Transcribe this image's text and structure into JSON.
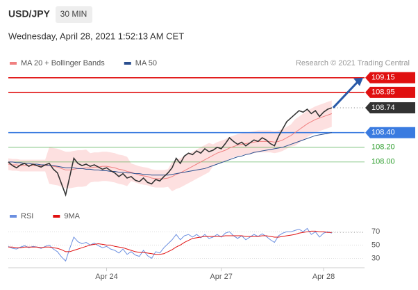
{
  "header": {
    "symbol": "USD/JPY",
    "interval": "30 MIN",
    "datetime": "Wednesday, April 28, 2021 1:52:13 AM CET"
  },
  "chart_data": [
    {
      "type": "candlestick-overlay",
      "legend": [
        {
          "name": "MA 20 + Bollinger Bands",
          "color": "#f08080"
        },
        {
          "name": "MA 50",
          "color": "#2a4f8f"
        }
      ],
      "credit": "Research © 2021 Trading Central",
      "xlim": [
        0,
        87
      ],
      "xticks": [
        {
          "value": 24,
          "label": "Apr 24"
        },
        {
          "value": 52,
          "label": "Apr 27"
        },
        {
          "value": 77,
          "label": "Apr 28"
        }
      ],
      "ylim": [
        107.4,
        109.3
      ],
      "levels": [
        {
          "value": 109.15,
          "color": "#e01010",
          "kind": "box"
        },
        {
          "value": 108.95,
          "color": "#e01010",
          "kind": "box"
        },
        {
          "value": 108.74,
          "color": "#333333",
          "kind": "dotted"
        },
        {
          "value": 108.4,
          "label": "108.40",
          "color": "#3a7be0",
          "kind": "box"
        },
        {
          "value": 108.2,
          "label": "108.20",
          "color": "#2e9e2e",
          "kind": "text"
        },
        {
          "value": 108,
          "label": "108.00",
          "color": "#2e9e2e",
          "kind": "text"
        }
      ],
      "target": 109.15,
      "series": [
        {
          "name": "Price",
          "color": "#333333",
          "values": [
            108.0,
            107.95,
            107.92,
            107.96,
            107.98,
            107.94,
            107.97,
            107.95,
            107.93,
            107.96,
            107.98,
            107.9,
            107.85,
            107.7,
            107.55,
            107.8,
            108.05,
            107.98,
            107.95,
            107.97,
            107.94,
            107.96,
            107.93,
            107.9,
            107.92,
            107.88,
            107.85,
            107.8,
            107.84,
            107.78,
            107.8,
            107.75,
            107.73,
            107.78,
            107.72,
            107.7,
            107.76,
            107.74,
            107.8,
            107.85,
            107.92,
            108.05,
            107.98,
            108.08,
            108.12,
            108.1,
            108.15,
            108.12,
            108.18,
            108.14,
            108.16,
            108.2,
            108.18,
            108.25,
            108.33,
            108.28,
            108.24,
            108.27,
            108.22,
            108.26,
            108.3,
            108.28,
            108.33,
            108.3,
            108.25,
            108.22,
            108.35,
            108.45,
            108.55,
            108.6,
            108.65,
            108.7,
            108.68,
            108.72,
            108.66,
            108.7,
            108.62,
            108.68,
            108.72,
            108.74
          ]
        },
        {
          "name": "MA 20",
          "color": "#f08080",
          "values": [
            107.97,
            107.96,
            107.96,
            107.95,
            107.95,
            107.95,
            107.95,
            107.95,
            107.95,
            107.95,
            107.95,
            107.94,
            107.93,
            107.91,
            107.89,
            107.89,
            107.9,
            107.91,
            107.91,
            107.92,
            107.92,
            107.93,
            107.93,
            107.94,
            107.94,
            107.93,
            107.92,
            107.9,
            107.89,
            107.87,
            107.86,
            107.84,
            107.82,
            107.81,
            107.8,
            107.78,
            107.77,
            107.77,
            107.77,
            107.78,
            107.8,
            107.83,
            107.85,
            107.88,
            107.91,
            107.94,
            107.97,
            108.0,
            108.03,
            108.06,
            108.09,
            108.12,
            108.14,
            108.16,
            108.19,
            108.21,
            108.23,
            108.24,
            108.25,
            108.26,
            108.27,
            108.28,
            108.28,
            108.28,
            108.28,
            108.27,
            108.28,
            108.3,
            108.33,
            108.36,
            108.4,
            108.44,
            108.48,
            108.52,
            108.55,
            108.58,
            108.6,
            108.62,
            108.64,
            108.66
          ]
        },
        {
          "name": "Upper band",
          "color": "#f8c8c8",
          "values": [
            108.05,
            108.04,
            108.04,
            108.03,
            108.03,
            108.03,
            108.03,
            108.03,
            108.03,
            108.03,
            108.2,
            108.19,
            108.18,
            108.16,
            108.14,
            108.14,
            108.15,
            108.16,
            108.16,
            108.17,
            108.12,
            108.13,
            108.13,
            108.14,
            108.14,
            108.13,
            108.12,
            108.1,
            108.09,
            108.07,
            107.98,
            107.96,
            107.94,
            107.93,
            107.92,
            107.9,
            107.89,
            107.89,
            107.89,
            107.9,
            108.0,
            108.03,
            108.05,
            108.08,
            108.11,
            108.14,
            108.17,
            108.2,
            108.23,
            108.26,
            108.24,
            108.27,
            108.29,
            108.31,
            108.34,
            108.36,
            108.38,
            108.39,
            108.4,
            108.41,
            108.42,
            108.43,
            108.43,
            108.43,
            108.43,
            108.42,
            108.43,
            108.45,
            108.48,
            108.51,
            108.58,
            108.62,
            108.66,
            108.7,
            108.73,
            108.76,
            108.78,
            108.8,
            108.82,
            108.84
          ]
        },
        {
          "name": "Lower band",
          "color": "#f8c8c8",
          "values": [
            107.89,
            107.88,
            107.88,
            107.87,
            107.87,
            107.87,
            107.87,
            107.87,
            107.87,
            107.87,
            107.7,
            107.69,
            107.68,
            107.66,
            107.64,
            107.64,
            107.65,
            107.66,
            107.66,
            107.67,
            107.72,
            107.73,
            107.73,
            107.74,
            107.74,
            107.73,
            107.72,
            107.7,
            107.69,
            107.67,
            107.74,
            107.72,
            107.7,
            107.69,
            107.68,
            107.66,
            107.65,
            107.65,
            107.65,
            107.66,
            107.6,
            107.63,
            107.65,
            107.68,
            107.71,
            107.74,
            107.77,
            107.8,
            107.83,
            107.86,
            107.94,
            107.97,
            107.99,
            108.01,
            108.04,
            108.06,
            108.08,
            108.09,
            108.1,
            108.11,
            108.12,
            108.13,
            108.13,
            108.13,
            108.13,
            108.12,
            108.13,
            108.15,
            108.18,
            108.21,
            108.22,
            108.26,
            108.3,
            108.34,
            108.37,
            108.4,
            108.42,
            108.44,
            108.46,
            108.48
          ]
        },
        {
          "name": "MA 50",
          "color": "#2a4f8f",
          "values": [
            108.0,
            108.0,
            107.99,
            107.99,
            107.98,
            107.98,
            107.97,
            107.97,
            107.96,
            107.96,
            107.95,
            107.95,
            107.94,
            107.93,
            107.92,
            107.92,
            107.92,
            107.91,
            107.91,
            107.9,
            107.9,
            107.89,
            107.89,
            107.88,
            107.88,
            107.87,
            107.87,
            107.86,
            107.86,
            107.85,
            107.85,
            107.84,
            107.84,
            107.83,
            107.83,
            107.82,
            107.82,
            107.82,
            107.82,
            107.82,
            107.83,
            107.84,
            107.85,
            107.86,
            107.87,
            107.88,
            107.89,
            107.9,
            107.91,
            107.93,
            107.95,
            107.97,
            107.99,
            108.01,
            108.03,
            108.05,
            108.07,
            108.08,
            108.1,
            108.11,
            108.13,
            108.14,
            108.15,
            108.16,
            108.17,
            108.18,
            108.19,
            108.2,
            108.22,
            108.24,
            108.26,
            108.28,
            108.3,
            108.32,
            108.34,
            108.36,
            108.37,
            108.38,
            108.39,
            108.4
          ]
        }
      ]
    },
    {
      "type": "oscillator",
      "legend": [
        {
          "name": "RSI",
          "color": "#6b8fe0"
        },
        {
          "name": "9MA",
          "color": "#e01010"
        }
      ],
      "ylim": [
        20,
        85
      ],
      "yticks": [
        30,
        50,
        70
      ],
      "series": [
        {
          "name": "RSI",
          "color": "#6b8fe0",
          "values": [
            48,
            45,
            44,
            47,
            49,
            46,
            48,
            47,
            45,
            48,
            50,
            44,
            40,
            32,
            26,
            45,
            62,
            55,
            52,
            54,
            50,
            53,
            49,
            46,
            48,
            44,
            42,
            38,
            44,
            36,
            40,
            35,
            33,
            42,
            34,
            30,
            40,
            38,
            46,
            52,
            58,
            66,
            58,
            64,
            66,
            62,
            66,
            61,
            66,
            60,
            62,
            66,
            62,
            68,
            70,
            64,
            60,
            64,
            58,
            62,
            66,
            63,
            67,
            63,
            58,
            54,
            64,
            68,
            70,
            70,
            72,
            74,
            70,
            75,
            66,
            70,
            62,
            68,
            70,
            68
          ]
        },
        {
          "name": "9MA",
          "color": "#e01010",
          "values": [
            47,
            47,
            46,
            46,
            47,
            47,
            47,
            47,
            46,
            47,
            47,
            46,
            45,
            43,
            40,
            40,
            42,
            44,
            46,
            48,
            50,
            51,
            52,
            51,
            50,
            50,
            48,
            47,
            46,
            44,
            42,
            40,
            39,
            39,
            38,
            37,
            36,
            36,
            37,
            40,
            43,
            47,
            50,
            54,
            57,
            60,
            61,
            62,
            63,
            63,
            63,
            63,
            63,
            64,
            64,
            64,
            64,
            64,
            63,
            63,
            63,
            63,
            64,
            64,
            63,
            62,
            62,
            63,
            64,
            65,
            66,
            68,
            69,
            70,
            71,
            71,
            70,
            70,
            69,
            69
          ]
        }
      ]
    }
  ]
}
